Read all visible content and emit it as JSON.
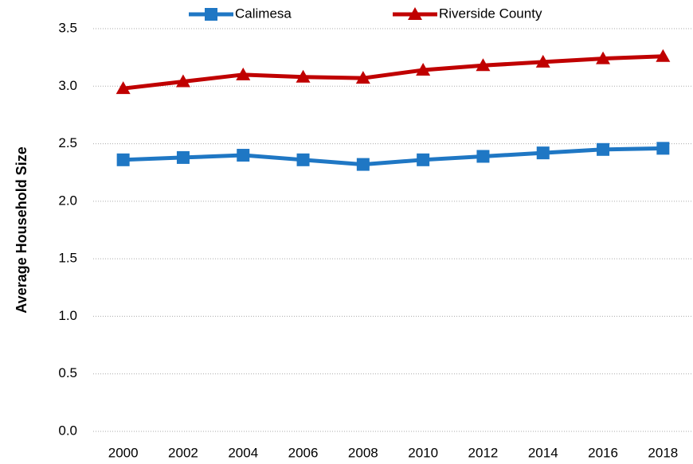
{
  "chart_data": {
    "type": "line",
    "categories": [
      "2000",
      "2002",
      "2004",
      "2006",
      "2008",
      "2010",
      "2012",
      "2014",
      "2016",
      "2018"
    ],
    "series": [
      {
        "name": "Calimesa",
        "color": "#1f77c4",
        "marker": "square",
        "values": [
          2.36,
          2.38,
          2.4,
          2.36,
          2.32,
          2.36,
          2.39,
          2.42,
          2.45,
          2.46
        ]
      },
      {
        "name": "Riverside County",
        "color": "#c00000",
        "marker": "triangle",
        "values": [
          2.98,
          3.04,
          3.1,
          3.08,
          3.07,
          3.14,
          3.18,
          3.21,
          3.24,
          3.26
        ]
      }
    ],
    "y_label": "Average Household Size",
    "ylim": [
      0,
      3.5
    ],
    "yticks": [
      {
        "value": 0,
        "label": "0.0"
      },
      0.5,
      {
        "value": 1,
        "label": "1.0"
      },
      1.5,
      {
        "value": 2,
        "label": "2.0"
      },
      2.5,
      {
        "value": 3,
        "label": "3.0"
      },
      3.5
    ],
    "grid": true,
    "legend": "top"
  }
}
